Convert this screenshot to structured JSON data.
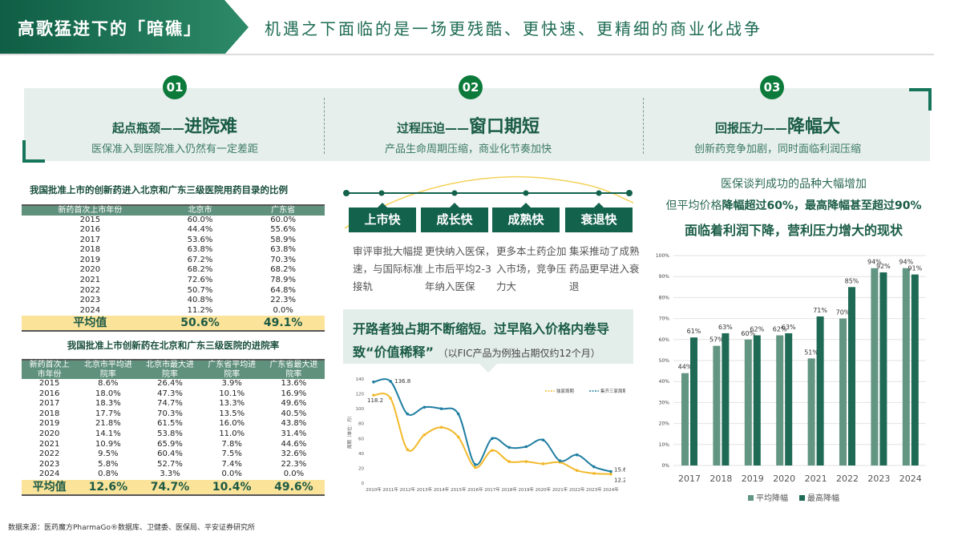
{
  "header": {
    "title": "高歌猛进下的「暗礁」",
    "subtitle": "机遇之下面临的是一场更残酷、更快速、更精细的商业化战争"
  },
  "pillars": [
    {
      "num": "01",
      "head": "起点瓶颈——",
      "head_em": "进院难",
      "sub": "医保准入到医院准入仍然有一定差距"
    },
    {
      "num": "02",
      "head": "过程压迫——",
      "head_em": "窗口期短",
      "sub": "产品生命周期压缩，商业化节奏加快"
    },
    {
      "num": "03",
      "head": "回报压力——",
      "head_em": "降幅大",
      "sub": "创新药竞争加剧，同时面临利润压缩"
    }
  ],
  "table1": {
    "title": "我国批准上市的创新药进入北京和广东三级医院用药目录的比例",
    "headers": [
      "新药首次上市年份",
      "北京市",
      "广东省"
    ],
    "rows": [
      [
        "2015",
        "60.0%",
        "60.0%"
      ],
      [
        "2016",
        "44.4%",
        "55.6%"
      ],
      [
        "2017",
        "53.6%",
        "58.9%"
      ],
      [
        "2018",
        "63.8%",
        "63.8%"
      ],
      [
        "2019",
        "67.2%",
        "70.3%"
      ],
      [
        "2020",
        "68.2%",
        "68.2%"
      ],
      [
        "2021",
        "72.6%",
        "78.9%"
      ],
      [
        "2022",
        "50.7%",
        "64.8%"
      ],
      [
        "2023",
        "40.8%",
        "22.3%"
      ],
      [
        "2024",
        "11.2%",
        "0.0%"
      ]
    ],
    "avg": [
      "平均值",
      "50.6%",
      "49.1%"
    ]
  },
  "table2": {
    "title": "我国批准上市创新药在北京和广东三级医院的进院率",
    "headers": [
      "新药首次上市年份",
      "北京市平均进院率",
      "北京市最大进院率",
      "广东省平均进院率",
      "广东省最大进院率"
    ],
    "rows": [
      [
        "2015",
        "8.6%",
        "26.4%",
        "3.9%",
        "13.6%"
      ],
      [
        "2016",
        "18.0%",
        "47.3%",
        "10.1%",
        "16.9%"
      ],
      [
        "2017",
        "18.3%",
        "74.7%",
        "13.3%",
        "49.6%"
      ],
      [
        "2018",
        "17.7%",
        "70.3%",
        "13.5%",
        "40.5%"
      ],
      [
        "2019",
        "21.8%",
        "61.5%",
        "16.0%",
        "43.8%"
      ],
      [
        "2020",
        "14.1%",
        "53.8%",
        "11.0%",
        "31.4%"
      ],
      [
        "2021",
        "10.9%",
        "65.9%",
        "7.8%",
        "44.6%"
      ],
      [
        "2022",
        "9.5%",
        "60.4%",
        "7.5%",
        "32.6%"
      ],
      [
        "2023",
        "5.8%",
        "52.7%",
        "7.4%",
        "22.3%"
      ],
      [
        "2024",
        "0.8%",
        "3.3%",
        "0.0%",
        "0.0%"
      ]
    ],
    "avg": [
      "平均值",
      "12.6%",
      "74.7%",
      "10.4%",
      "49.6%"
    ]
  },
  "lifecycle": [
    {
      "stage": "上市快",
      "desc": "审评审批大幅提速，与国际标准接轨"
    },
    {
      "stage": "成长快",
      "desc": "更快纳入医保，上市后平均2-3年纳入医保"
    },
    {
      "stage": "成熟快",
      "desc": "更多本土药企加入市场，竞争压力大"
    },
    {
      "stage": "衰退快",
      "desc": "集采推动了成熟药品更早进入衰退"
    }
  ],
  "callout": {
    "main": "开路者独占期不断缩短。过早陷入价格内卷导致“价值稀释”",
    "note": "（以FIC产品为例独占期仅约12个月）"
  },
  "right_text": {
    "line1": "医保谈判成功的品种大幅增加",
    "line2_a": "但平均价格",
    "line2_b": "降幅超过60%，最高降幅甚至超过90%",
    "line3": "面临着利润下降，营利压力增大的现状"
  },
  "footer": "数据来源：医药魔方PharmaGo®数据库、卫健委、医保局、平安证券研究所",
  "colors": {
    "brand": "#12624c",
    "yellow": "#f2b92b",
    "blue": "#1f7ea1",
    "bar_avg": "#629582",
    "bar_max": "#1f6a55"
  },
  "chart_data": [
    {
      "type": "line",
      "ylabel": "周期（单位：月）",
      "ylim": [
        0,
        140
      ],
      "yticks": [
        0,
        20,
        40,
        60,
        80,
        100,
        120,
        140
      ],
      "x": [
        "2010年",
        "2011年",
        "2012年",
        "2013年",
        "2014年",
        "2015年",
        "2016年",
        "2017年",
        "2018年",
        "2019年",
        "2020年",
        "2021年",
        "2022年",
        "2023年",
        "2024年"
      ],
      "series": [
        {
          "name": "独家周期",
          "values": [
            118.2,
            114,
            45,
            65,
            75,
            62,
            21,
            44,
            29,
            29,
            26,
            28,
            17,
            13,
            12.2
          ]
        },
        {
          "name": "集齐三家周期",
          "values": [
            136,
            136.8,
            93,
            102,
            100,
            93,
            25,
            60,
            48,
            49,
            58,
            30,
            38,
            22,
            15.6
          ]
        }
      ],
      "annotations": [
        "136.8",
        "118.2",
        "15.6",
        "12.2"
      ],
      "legend": "top-right"
    },
    {
      "type": "bar",
      "ylim": [
        0,
        100
      ],
      "yticks": [
        "0%",
        "10%",
        "20%",
        "30%",
        "40%",
        "50%",
        "60%",
        "70%",
        "80%",
        "90%",
        "100%"
      ],
      "categories": [
        "2017",
        "2018",
        "2019",
        "2020",
        "2021",
        "2022",
        "2023",
        "2024"
      ],
      "series": [
        {
          "name": "平均降幅",
          "values": [
            44,
            57,
            60,
            62,
            51,
            70,
            94,
            94
          ]
        },
        {
          "name": "最高降幅",
          "values": [
            61,
            63,
            62,
            63,
            71,
            85,
            92,
            91
          ]
        }
      ],
      "grid": true,
      "legend": "bottom"
    }
  ]
}
